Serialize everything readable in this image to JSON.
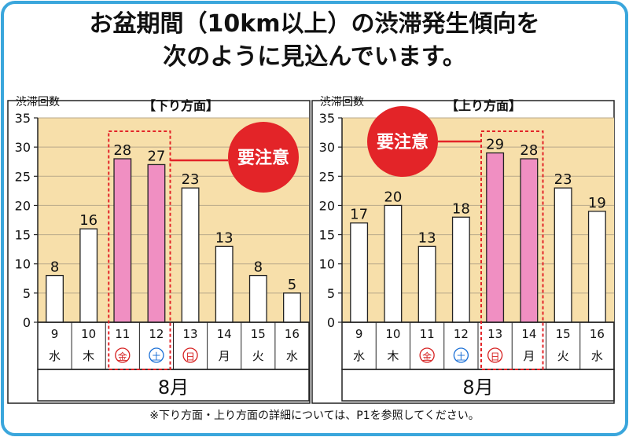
{
  "title_line1": "お盆期間（10km以上）の渋滞発生傾向を",
  "title_line2": "次のように見込んでいます。",
  "footnote": "※下り方面・上り方面の詳細については、P1を参照してください。",
  "colors": {
    "frame": "#3aa6dc",
    "plot_bg": "#f7dfaa",
    "bar": "#ffffff",
    "bar_highlight": "#f08fc2",
    "alert": "#e32428",
    "weekend_red": "#d62020",
    "weekend_blue": "#1a6fd6"
  },
  "chart_data": [
    {
      "type": "bar",
      "title": "【下り方面】",
      "ylabel": "渋滞回数",
      "xlabel": "8月",
      "ylim": [
        0,
        35
      ],
      "yticks": [
        0,
        5,
        10,
        15,
        20,
        25,
        30,
        35
      ],
      "categories": [
        "9",
        "10",
        "11",
        "12",
        "13",
        "14",
        "15",
        "16"
      ],
      "weekdays": [
        "水",
        "木",
        "金",
        "土",
        "日",
        "月",
        "火",
        "水"
      ],
      "values": [
        8,
        16,
        28,
        27,
        23,
        13,
        8,
        5
      ],
      "highlight": [
        "11",
        "12"
      ],
      "alert_label": "要注意"
    },
    {
      "type": "bar",
      "title": "【上り方面】",
      "ylabel": "渋滞回数",
      "xlabel": "8月",
      "ylim": [
        0,
        35
      ],
      "yticks": [
        0,
        5,
        10,
        15,
        20,
        25,
        30,
        35
      ],
      "categories": [
        "9",
        "10",
        "11",
        "12",
        "13",
        "14",
        "15",
        "16"
      ],
      "weekdays": [
        "水",
        "木",
        "金",
        "土",
        "日",
        "月",
        "火",
        "水"
      ],
      "values": [
        17,
        20,
        13,
        18,
        29,
        28,
        23,
        19
      ],
      "highlight": [
        "13",
        "14"
      ],
      "alert_label": "要注意"
    }
  ]
}
